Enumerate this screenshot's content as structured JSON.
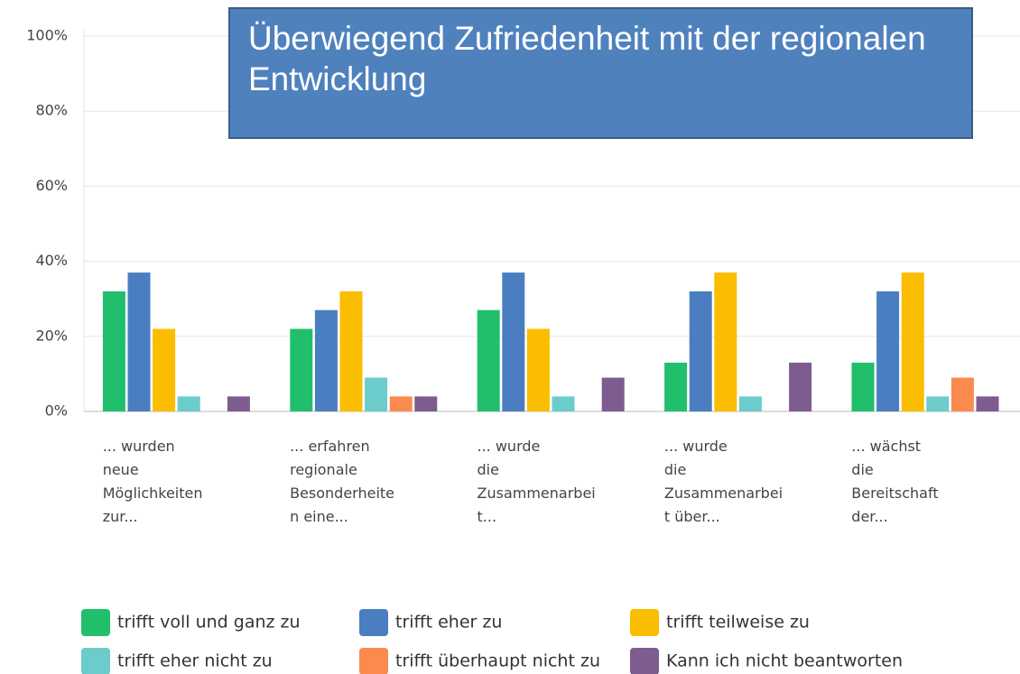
{
  "chart_data": {
    "type": "bar",
    "title": "Überwiegend Zufriedenheit mit der regionalen Entwicklung",
    "categories": [
      "... wurden\nneue\nMöglichkeiten\nzur...",
      "... erfahren\nregionale\nBesonderheite\nn eine...",
      "... wurde\ndie\nZusammenarbei\nt...",
      "... wurde\ndie\nZusammenarbei\nt über...",
      "... wächst\ndie\nBereitschaft\nder..."
    ],
    "series": [
      {
        "name": "trifft voll und ganz zu",
        "color": "#21bf6b",
        "values": [
          32,
          22,
          27,
          13,
          13
        ]
      },
      {
        "name": "trifft eher zu",
        "color": "#4a7ec1",
        "values": [
          37,
          27,
          37,
          32,
          32
        ]
      },
      {
        "name": "trifft teilweise zu",
        "color": "#fbbd00",
        "values": [
          22,
          32,
          22,
          37,
          37
        ]
      },
      {
        "name": "trifft eher nicht zu",
        "color": "#6ccbcb",
        "values": [
          4,
          9,
          4,
          4,
          4
        ]
      },
      {
        "name": "trifft überhaupt nicht zu",
        "color": "#fb8a4e",
        "values": [
          0,
          4,
          0,
          0,
          9
        ]
      },
      {
        "name": "Kann ich nicht beantworten",
        "color": "#7d5c90",
        "values": [
          4,
          4,
          9,
          13,
          4
        ]
      }
    ],
    "ylim": [
      0,
      100
    ],
    "yticks": [
      {
        "value": 0,
        "label": "0%"
      },
      {
        "value": 20,
        "label": "20%"
      },
      {
        "value": 40,
        "label": "40%"
      },
      {
        "value": 60,
        "label": "60%"
      },
      {
        "value": 80,
        "label": "80%"
      },
      {
        "value": 100,
        "label": "100%"
      }
    ],
    "grid": true
  }
}
